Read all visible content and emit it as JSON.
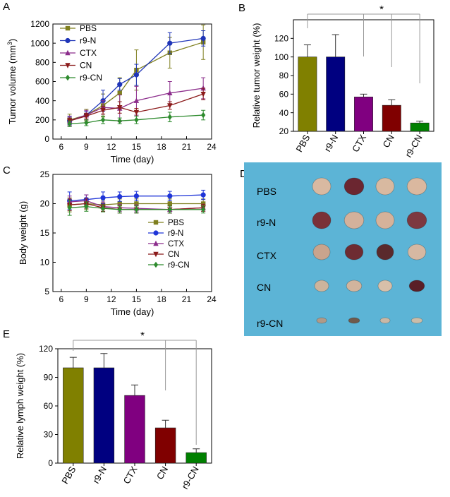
{
  "panels": {
    "a": "A",
    "b": "B",
    "c": "C",
    "d": "D",
    "e": "E"
  },
  "photo": {
    "background_color": "#5cb4d6",
    "row_labels": [
      "PBS",
      "r9-N",
      "CTX",
      "CN",
      "r9-CN"
    ],
    "tumor_colors": {
      "PBS": [
        "#d9b9a1",
        "#6b2630",
        "#d8b9a0",
        "#dab89f"
      ],
      "r9-N": [
        "#7a3138",
        "#d4b19b",
        "#d6b29a",
        "#7d3840"
      ],
      "CTX": [
        "#c9a48d",
        "#6e2c32",
        "#5a2a2c",
        "#d6b8a2"
      ],
      "CN": [
        "#cdb49c",
        "#d1b49d",
        "#d7bfa9",
        "#5a1f27"
      ],
      "r9-CN": [
        "#b09a88",
        "#6f5a4c",
        "#c9b8a6",
        "#cbbda9"
      ]
    }
  },
  "chart_data": [
    {
      "id": "A",
      "type": "line",
      "xlabel": "Time (day)",
      "ylabel": "Tumor volume (mm³)",
      "ylabel_main": "Tumor volume (mm",
      "ylabel_sup": "3",
      "ylabel_end": ")",
      "xlim": [
        5,
        24
      ],
      "ylim": [
        0,
        1200
      ],
      "xticks": [
        6,
        9,
        12,
        15,
        18,
        21,
        24
      ],
      "yticks": [
        0,
        200,
        400,
        600,
        800,
        1000,
        1200
      ],
      "x": [
        7,
        9,
        11,
        13,
        15,
        19,
        23
      ],
      "legend": "top-left",
      "series": [
        {
          "name": "PBS",
          "color": "#7f7f1f",
          "marker": "square",
          "values": [
            200,
            250,
            350,
            480,
            720,
            900,
            1010
          ],
          "errors": [
            60,
            60,
            120,
            160,
            210,
            160,
            180
          ]
        },
        {
          "name": "r9-N",
          "color": "#1f35b8",
          "marker": "circle",
          "values": [
            190,
            250,
            400,
            570,
            670,
            1000,
            1050
          ],
          "errors": [
            40,
            40,
            110,
            60,
            110,
            110,
            80
          ]
        },
        {
          "name": "CTX",
          "color": "#8b2c8b",
          "marker": "triangle",
          "values": [
            190,
            250,
            330,
            320,
            400,
            480,
            530
          ],
          "errors": [
            50,
            50,
            70,
            140,
            150,
            120,
            110
          ]
        },
        {
          "name": "CN",
          "color": "#8b1a1a",
          "marker": "triangle-down",
          "values": [
            190,
            240,
            300,
            330,
            280,
            350,
            470
          ],
          "errors": [
            30,
            30,
            40,
            60,
            40,
            40,
            60
          ]
        },
        {
          "name": "r9-CN",
          "color": "#2e8b2e",
          "marker": "diamond",
          "values": [
            160,
            170,
            200,
            190,
            200,
            230,
            250
          ],
          "errors": [
            30,
            30,
            40,
            30,
            40,
            50,
            50
          ]
        }
      ]
    },
    {
      "id": "B",
      "type": "bar",
      "ylabel": "Relative tumor weight (%)",
      "ylim": [
        20,
        140
      ],
      "yticks": [
        20,
        40,
        60,
        80,
        100,
        120
      ],
      "categories": [
        "PBS",
        "r9-N",
        "CTX",
        "CN",
        "r9-CN"
      ],
      "values": [
        100,
        100,
        57,
        48,
        29
      ],
      "errors": [
        13,
        24,
        3,
        6,
        2
      ],
      "colors": [
        "#808000",
        "#000080",
        "#800080",
        "#800000",
        "#008000"
      ],
      "annotation": "*"
    },
    {
      "id": "C",
      "type": "line",
      "xlabel": "Time (day)",
      "ylabel": "Body weight (g)",
      "xlim": [
        5,
        24
      ],
      "ylim": [
        5,
        25
      ],
      "xticks": [
        6,
        9,
        12,
        15,
        18,
        21,
        24
      ],
      "yticks": [
        5,
        10,
        15,
        20,
        25
      ],
      "x": [
        7,
        9,
        11,
        13,
        15,
        19,
        23
      ],
      "legend": "bottom-right",
      "series": [
        {
          "name": "PBS",
          "color": "#7f7f1f",
          "marker": "square",
          "values": [
            19.8,
            20.0,
            19.8,
            20.0,
            20.0,
            20.0,
            20.0
          ],
          "errors": [
            1.2,
            1.0,
            0.8,
            0.8,
            0.8,
            0.8,
            0.8
          ]
        },
        {
          "name": "r9-N",
          "color": "#1f35d8",
          "marker": "circle",
          "values": [
            20.5,
            20.7,
            21.0,
            21.2,
            21.3,
            21.3,
            21.5
          ],
          "errors": [
            1.5,
            0.8,
            1.0,
            0.8,
            0.8,
            0.8,
            0.8
          ]
        },
        {
          "name": "CTX",
          "color": "#8b2c8b",
          "marker": "triangle",
          "values": [
            20.3,
            20.5,
            19.5,
            19.3,
            19.2,
            19.0,
            19.3
          ],
          "errors": [
            1.0,
            1.0,
            0.8,
            0.6,
            0.6,
            0.6,
            0.6
          ]
        },
        {
          "name": "CN",
          "color": "#8b1a1a",
          "marker": "triangle-down",
          "values": [
            19.8,
            20.0,
            19.3,
            19.0,
            19.0,
            19.0,
            19.3
          ],
          "errors": [
            1.0,
            0.8,
            0.6,
            0.6,
            0.6,
            0.6,
            0.6
          ]
        },
        {
          "name": "r9-CN",
          "color": "#2e8b2e",
          "marker": "diamond",
          "values": [
            19.3,
            19.5,
            19.2,
            19.0,
            19.0,
            19.0,
            19.0
          ],
          "errors": [
            1.3,
            0.8,
            0.6,
            0.6,
            0.6,
            0.6,
            0.6
          ]
        }
      ]
    },
    {
      "id": "E",
      "type": "bar",
      "ylabel": "Relative lymph weight (%)",
      "ylim": [
        0,
        120
      ],
      "yticks": [
        0,
        30,
        60,
        90,
        120
      ],
      "categories": [
        "PBS",
        "r9-N",
        "CTX",
        "CN",
        "r9-CN"
      ],
      "values": [
        100,
        100,
        71,
        37,
        11
      ],
      "errors": [
        11,
        15,
        11,
        8,
        4
      ],
      "colors": [
        "#808000",
        "#000080",
        "#800080",
        "#800000",
        "#008000"
      ],
      "annotation": "*"
    }
  ]
}
